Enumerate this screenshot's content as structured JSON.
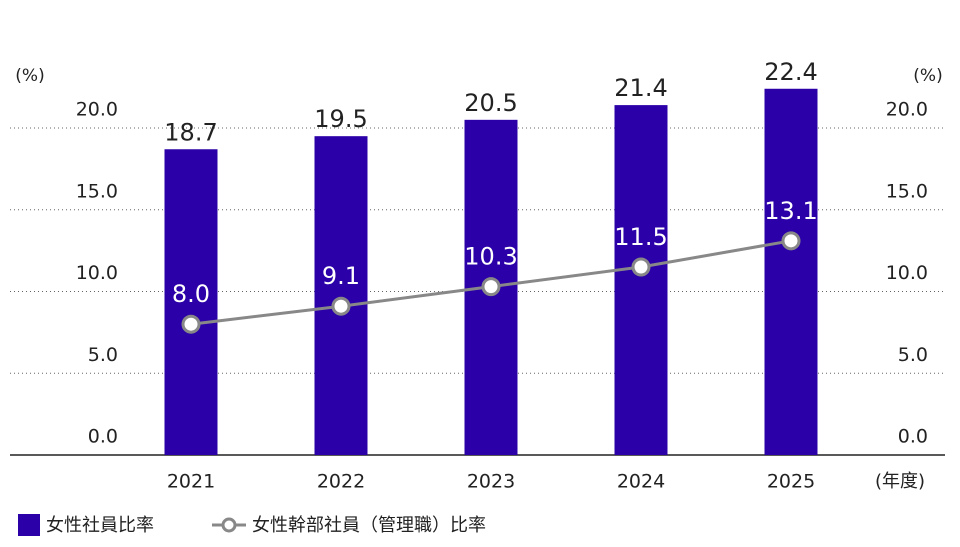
{
  "chart_data": {
    "type": "bar",
    "categories": [
      "2021",
      "2022",
      "2023",
      "2024",
      "2025"
    ],
    "x_label": "(年度)",
    "y_label": "(%)",
    "y2_label": "(%)",
    "ylim": [
      0,
      20
    ],
    "yticks": [
      {
        "value": 0,
        "label": "0.0"
      },
      {
        "value": 5,
        "label": "5.0"
      },
      {
        "value": 10,
        "label": "10.0"
      },
      {
        "value": 15,
        "label": "15.0"
      },
      {
        "value": 20,
        "label": "20.0"
      }
    ],
    "y2lim": [
      0,
      20
    ],
    "y2ticks": [
      {
        "value": 0,
        "label": "0.0"
      },
      {
        "value": 5,
        "label": "5.0"
      },
      {
        "value": 10,
        "label": "10.0"
      },
      {
        "value": 15,
        "label": "15.0"
      },
      {
        "value": 20,
        "label": "20.0"
      }
    ],
    "grid": true,
    "legend": "bottom-left",
    "series": [
      {
        "name": "女性社員比率",
        "type": "bar",
        "color": "#2b00a8",
        "values": [
          18.7,
          19.5,
          20.5,
          21.4,
          22.4
        ]
      },
      {
        "name": "女性幹部社員（管理職）比率",
        "type": "line",
        "axis": "y2",
        "color": "#888888",
        "values": [
          8.0,
          9.1,
          10.3,
          11.5,
          13.1
        ],
        "value_labels": [
          "8.0",
          "9.1",
          "10.3",
          "11.5",
          "13.1"
        ]
      }
    ]
  }
}
